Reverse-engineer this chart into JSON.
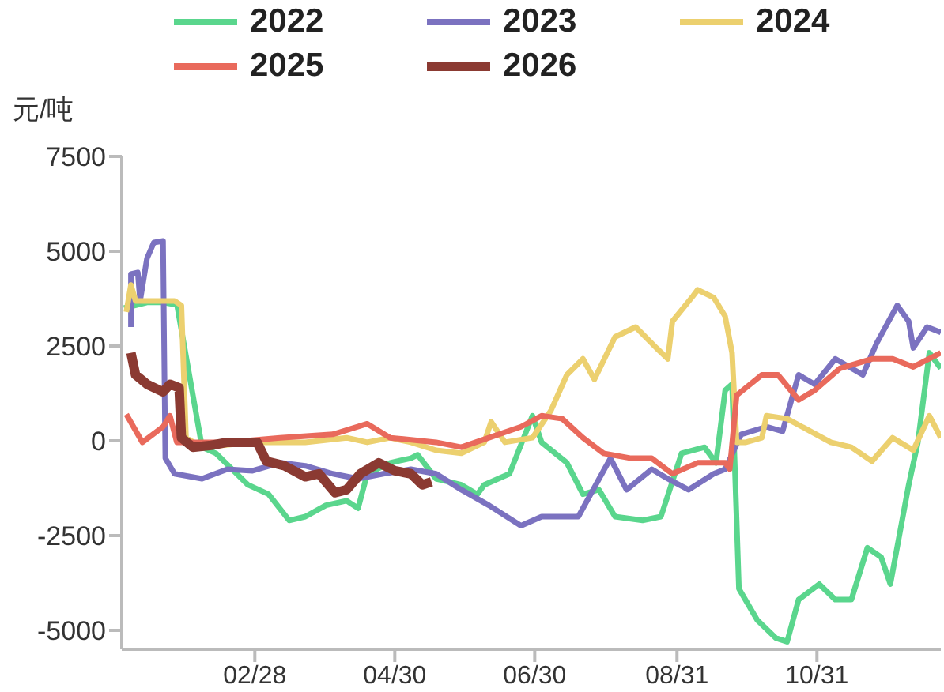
{
  "chart_data": {
    "type": "line",
    "ylabel": "元/吨",
    "legend": "top",
    "marker": "none",
    "line_style": "solid",
    "xlim": [
      "--01-01",
      "--12-24"
    ],
    "ylim": [
      -5500,
      7500
    ],
    "yticks": [
      -5000,
      -2500,
      0,
      2500,
      5000,
      7500
    ],
    "xticks": [
      {
        "value": "--02-28",
        "label": "02/28"
      },
      {
        "value": "--04-30",
        "label": "04/30"
      },
      {
        "value": "--06-30",
        "label": "06/30"
      },
      {
        "value": "--08-31",
        "label": "08/31"
      },
      {
        "value": "--10-31",
        "label": "10/31"
      }
    ],
    "series": [
      {
        "name": "2022",
        "color": "#5ad68d",
        "x": [
          "--01-02",
          "--01-12",
          "--01-19",
          "--01-24",
          "--01-25",
          "--02-05",
          "--02-11",
          "--02-25",
          "--03-06",
          "--03-15",
          "--03-22",
          "--03-31",
          "--04-09",
          "--04-14",
          "--04-18",
          "--04-28",
          "--05-07",
          "--05-10",
          "--05-18",
          "--05-29",
          "--06-05",
          "--06-08",
          "--06-19",
          "--06-29",
          "--07-03",
          "--07-14",
          "--07-21",
          "--07-28",
          "--08-04",
          "--08-16",
          "--08-24",
          "--09-02",
          "--09-12",
          "--09-17",
          "--09-21",
          "--09-24",
          "--09-27",
          "--10-05",
          "--10-13",
          "--10-18",
          "--10-23",
          "--11-01",
          "--11-08",
          "--11-15",
          "--11-22",
          "--11-28",
          "--12-02",
          "--12-10",
          "--12-14",
          "--12-19",
          "--12-24"
        ],
        "values": [
          3500,
          3650,
          3650,
          3600,
          3610,
          -170,
          -330,
          -1160,
          -1410,
          -2100,
          -2000,
          -1700,
          -1580,
          -1780,
          -870,
          -580,
          -460,
          -370,
          -1000,
          -1160,
          -1410,
          -1160,
          -870,
          660,
          -40,
          -580,
          -1410,
          -1290,
          -2000,
          -2100,
          -2000,
          -330,
          -170,
          -580,
          1330,
          1490,
          -3900,
          -4730,
          -5200,
          -5300,
          -4190,
          -3780,
          -4190,
          -4190,
          -2820,
          -3070,
          -3780,
          -1160,
          -40,
          2320,
          1910
        ]
      },
      {
        "name": "2023",
        "color": "#7b72c0",
        "x": [
          "--01-05",
          "--01-05",
          "--01-08",
          "--01-09",
          "--01-12",
          "--01-15",
          "--01-19",
          "--01-20",
          "--01-24",
          "--02-05",
          "--02-16",
          "--02-27",
          "--03-11",
          "--03-22",
          "--04-03",
          "--04-14",
          "--04-25",
          "--05-07",
          "--05-18",
          "--05-29",
          "--06-10",
          "--06-24",
          "--07-03",
          "--07-19",
          "--08-02",
          "--08-09",
          "--08-20",
          "--08-27",
          "--09-05",
          "--09-16",
          "--09-21",
          "--09-28",
          "--10-09",
          "--10-16",
          "--10-23",
          "--10-30",
          "--11-08",
          "--11-20",
          "--11-26",
          "--12-05",
          "--12-10",
          "--12-12",
          "--12-18",
          "--12-24"
        ],
        "values": [
          3000,
          4400,
          4440,
          3690,
          4810,
          5230,
          5270,
          -460,
          -870,
          -1000,
          -750,
          -790,
          -580,
          -660,
          -870,
          -1000,
          -870,
          -750,
          -870,
          -1290,
          -1700,
          -2240,
          -2000,
          -2000,
          -460,
          -1290,
          -750,
          -1000,
          -1290,
          -870,
          -750,
          170,
          370,
          250,
          1740,
          1490,
          2160,
          1740,
          2570,
          3570,
          3150,
          2450,
          3000,
          2860
        ]
      },
      {
        "name": "2024",
        "color": "#ecd06f",
        "x": [
          "--01-03",
          "--01-05",
          "--01-07",
          "--01-24",
          "--01-27",
          "--01-29",
          "--02-05",
          "--02-27",
          "--03-22",
          "--04-09",
          "--04-18",
          "--04-28",
          "--05-07",
          "--05-18",
          "--05-29",
          "--06-08",
          "--06-11",
          "--06-17",
          "--06-29",
          "--07-07",
          "--07-14",
          "--07-21",
          "--07-26",
          "--08-04",
          "--08-13",
          "--08-22",
          "--08-27",
          "--08-29",
          "--09-07",
          "--09-09",
          "--09-16",
          "--09-21",
          "--09-24",
          "--09-26",
          "--09-30",
          "--10-07",
          "--10-09",
          "--10-18",
          "--10-27",
          "--11-06",
          "--11-15",
          "--11-24",
          "--12-03",
          "--12-12",
          "--12-19",
          "--12-24"
        ],
        "values": [
          3400,
          4110,
          3690,
          3690,
          3570,
          80,
          -170,
          -40,
          -40,
          80,
          -40,
          80,
          -40,
          -250,
          -330,
          -40,
          500,
          -40,
          80,
          790,
          1740,
          2160,
          1620,
          2740,
          3000,
          2450,
          2160,
          3150,
          3820,
          3980,
          3780,
          3280,
          2320,
          -40,
          -40,
          80,
          660,
          580,
          290,
          -40,
          -170,
          -540,
          80,
          -250,
          660,
          80
        ]
      },
      {
        "name": "2025",
        "color": "#e96a5c",
        "x": [
          "--01-03",
          "--01-10",
          "--01-19",
          "--01-22",
          "--01-25",
          "--02-16",
          "--03-11",
          "--04-03",
          "--04-18",
          "--04-28",
          "--05-18",
          "--05-29",
          "--06-10",
          "--06-24",
          "--07-03",
          "--07-12",
          "--07-21",
          "--07-30",
          "--08-11",
          "--08-20",
          "--08-29",
          "--09-09",
          "--09-21",
          "--09-23",
          "--09-26",
          "--10-07",
          "--10-14",
          "--10-23",
          "--10-30",
          "--11-10",
          "--11-24",
          "--12-03",
          "--12-12",
          "--12-24"
        ],
        "values": [
          700,
          -40,
          370,
          660,
          -40,
          -40,
          80,
          170,
          450,
          80,
          -40,
          -170,
          80,
          370,
          660,
          580,
          80,
          -330,
          -460,
          -460,
          -870,
          -580,
          -580,
          -750,
          1200,
          1740,
          1740,
          1080,
          1330,
          1910,
          2160,
          2160,
          1950,
          2320
        ]
      },
      {
        "name": "2026",
        "color": "#8b3a32",
        "x": [
          "--01-05",
          "--01-07",
          "--01-12",
          "--01-19",
          "--01-22",
          "--01-26",
          "--01-27",
          "--02-01",
          "--02-09",
          "--02-16",
          "--03-01",
          "--03-05",
          "--03-13",
          "--03-22",
          "--03-28",
          "--04-04",
          "--04-09",
          "--04-15",
          "--04-23",
          "--04-30",
          "--05-07",
          "--05-12",
          "--05-16"
        ],
        "values": [
          2320,
          1740,
          1490,
          1290,
          1490,
          1400,
          80,
          -170,
          -120,
          -40,
          -40,
          -540,
          -660,
          -950,
          -870,
          -1370,
          -1290,
          -870,
          -580,
          -790,
          -870,
          -1160,
          -1080
        ]
      }
    ]
  }
}
